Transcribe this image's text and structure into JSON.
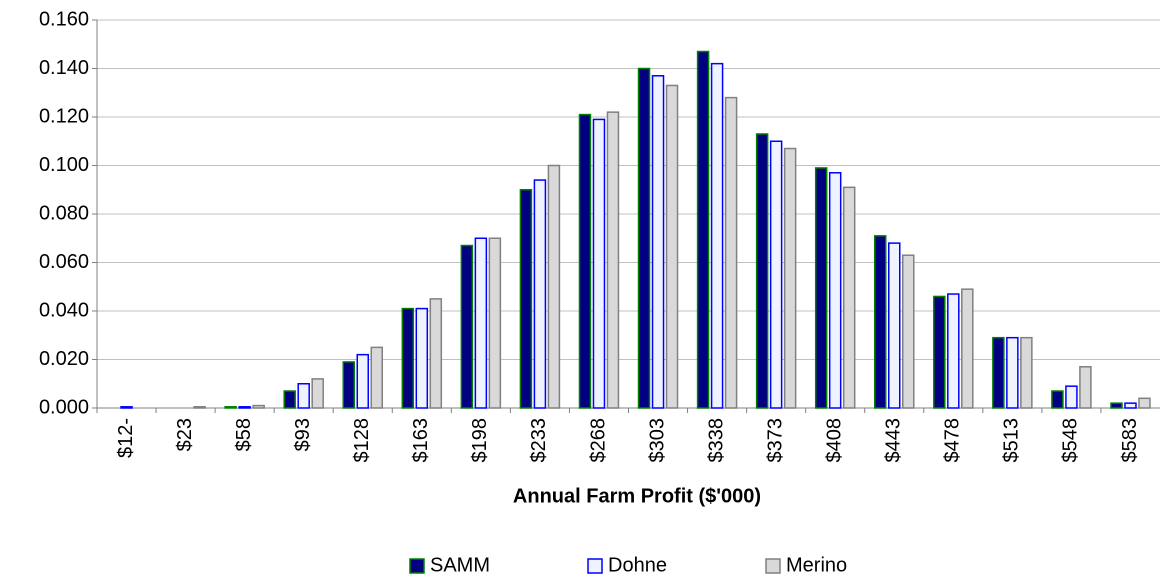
{
  "chart_data": {
    "type": "bar",
    "x_label": "Annual Farm Profit ($'000)",
    "categories": [
      "$12-",
      "$23",
      "$58",
      "$93",
      "$128",
      "$163",
      "$198",
      "$233",
      "$268",
      "$303",
      "$338",
      "$373",
      "$408",
      "$443",
      "$478",
      "$513",
      "$548",
      "$583"
    ],
    "series": [
      {
        "name": "SAMM",
        "color": "#000080",
        "edge_color": "#008000",
        "values": [
          0,
          0,
          0.0005,
          0.007,
          0.019,
          0.041,
          0.067,
          0.09,
          0.121,
          0.14,
          0.147,
          0.113,
          0.099,
          0.071,
          0.046,
          0.029,
          0.007,
          0.002
        ]
      },
      {
        "name": "Dohne",
        "color": "#eef3ff",
        "edge_color": "#0000ff",
        "values": [
          0.0005,
          0,
          0.0005,
          0.01,
          0.022,
          0.041,
          0.07,
          0.094,
          0.119,
          0.137,
          0.142,
          0.11,
          0.097,
          0.068,
          0.047,
          0.029,
          0.009,
          0.002
        ]
      },
      {
        "name": "Merino",
        "color": "#d9d9d9",
        "edge_color": "#808080",
        "values": [
          0,
          0.0005,
          0.001,
          0.012,
          0.025,
          0.045,
          0.07,
          0.1,
          0.122,
          0.133,
          0.128,
          0.107,
          0.091,
          0.063,
          0.049,
          0.029,
          0.017,
          0.004
        ]
      }
    ],
    "ylim": [
      0,
      0.16
    ],
    "yticks": [
      {
        "value": 0,
        "label": "0.000"
      },
      {
        "value": 0.02,
        "label": "0.020"
      },
      {
        "value": 0.04,
        "label": "0.040"
      },
      {
        "value": 0.06,
        "label": "0.060"
      },
      {
        "value": 0.08,
        "label": "0.080"
      },
      {
        "value": 0.1,
        "label": "0.100"
      },
      {
        "value": 0.12,
        "label": "0.120"
      },
      {
        "value": 0.14,
        "label": "0.140"
      },
      {
        "value": 0.16,
        "label": "0.160"
      }
    ],
    "grid": true,
    "legend": "bottom"
  }
}
